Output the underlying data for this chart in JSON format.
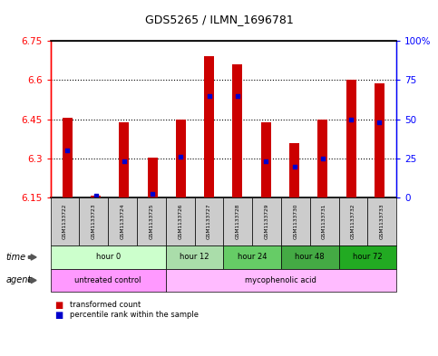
{
  "title": "GDS5265 / ILMN_1696781",
  "samples": [
    "GSM1133722",
    "GSM1133723",
    "GSM1133724",
    "GSM1133725",
    "GSM1133726",
    "GSM1133727",
    "GSM1133728",
    "GSM1133729",
    "GSM1133730",
    "GSM1133731",
    "GSM1133732",
    "GSM1133733"
  ],
  "red_bar_tops": [
    6.457,
    6.156,
    6.44,
    6.302,
    6.45,
    6.69,
    6.66,
    6.44,
    6.36,
    6.45,
    6.601,
    6.587
  ],
  "blue_dot_vals": [
    6.33,
    6.158,
    6.288,
    6.163,
    6.308,
    6.538,
    6.538,
    6.288,
    6.27,
    6.3,
    6.45,
    6.44
  ],
  "y_min": 6.15,
  "y_max": 6.75,
  "y_ticks_left": [
    6.15,
    6.3,
    6.45,
    6.6,
    6.75
  ],
  "y_ticks_right_labels": [
    "0",
    "25",
    "50",
    "75",
    "100%"
  ],
  "y_ticks_right_vals": [
    6.15,
    6.3,
    6.45,
    6.6,
    6.75
  ],
  "bar_color": "#cc0000",
  "dot_color": "#0000cc",
  "time_groups": [
    {
      "label": "hour 0",
      "start": 0,
      "end": 4,
      "bg": "#ccffcc"
    },
    {
      "label": "hour 12",
      "start": 4,
      "end": 6,
      "bg": "#aaddaa"
    },
    {
      "label": "hour 24",
      "start": 6,
      "end": 8,
      "bg": "#66cc66"
    },
    {
      "label": "hour 48",
      "start": 8,
      "end": 10,
      "bg": "#44aa44"
    },
    {
      "label": "hour 72",
      "start": 10,
      "end": 12,
      "bg": "#22aa22"
    }
  ],
  "agent_groups": [
    {
      "label": "untreated control",
      "start": 0,
      "end": 4,
      "bg": "#ff99ff"
    },
    {
      "label": "mycophenolic acid",
      "start": 4,
      "end": 12,
      "bg": "#ffbbff"
    }
  ],
  "sample_bg": "#cccccc",
  "bar_width": 0.35,
  "dot_size": 10
}
